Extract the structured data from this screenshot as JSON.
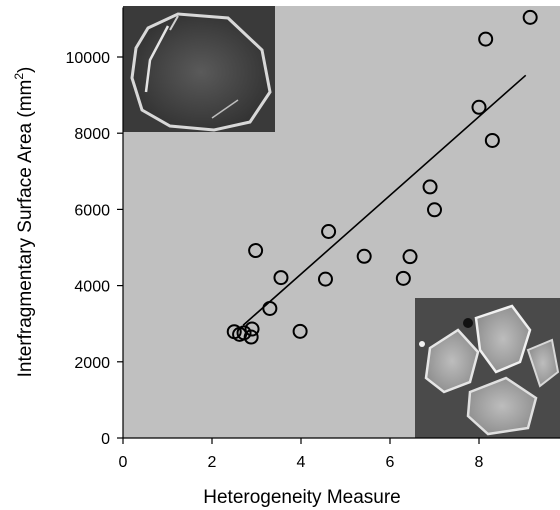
{
  "chart_data": {
    "type": "scatter",
    "xlabel": "Heterogeneity Measure",
    "ylabel": "Interfragmentary Surface Area (mm²)",
    "ylabel_parts": {
      "main": "Interfragmentary Surface Area (mm",
      "sup": "2",
      "end": ")"
    },
    "xlim": [
      0,
      9.8
    ],
    "ylim": [
      0,
      11300
    ],
    "xticks": [
      0,
      2,
      4,
      6,
      8
    ],
    "yticks": [
      0,
      2000,
      4000,
      6000,
      8000,
      10000
    ],
    "ytick_labels": [
      "0",
      "2000",
      "4000",
      "6000",
      "8000",
      "10000"
    ],
    "grid": false,
    "background": "#c0c0c0",
    "points": [
      {
        "x": 2.5,
        "y": 2790
      },
      {
        "x": 2.62,
        "y": 2720
      },
      {
        "x": 2.72,
        "y": 2760
      },
      {
        "x": 2.9,
        "y": 2860
      },
      {
        "x": 2.88,
        "y": 2650
      },
      {
        "x": 2.98,
        "y": 4920
      },
      {
        "x": 3.3,
        "y": 3400
      },
      {
        "x": 3.55,
        "y": 4210
      },
      {
        "x": 3.98,
        "y": 2800
      },
      {
        "x": 4.55,
        "y": 4170
      },
      {
        "x": 4.62,
        "y": 5420
      },
      {
        "x": 5.42,
        "y": 4770
      },
      {
        "x": 6.3,
        "y": 4190
      },
      {
        "x": 6.45,
        "y": 4760
      },
      {
        "x": 6.9,
        "y": 6590
      },
      {
        "x": 7.0,
        "y": 5990
      },
      {
        "x": 8.0,
        "y": 8680
      },
      {
        "x": 8.15,
        "y": 10470
      },
      {
        "x": 8.3,
        "y": 7810
      },
      {
        "x": 9.15,
        "y": 11040
      }
    ],
    "trendline": {
      "x": [
        2.7,
        9.05
      ],
      "y": [
        2960,
        9520
      ]
    },
    "insets": [
      {
        "name": "ct-scan-intact-bone-image",
        "corner": "top-left"
      },
      {
        "name": "ct-scan-fractured-bone-image",
        "corner": "bottom-right"
      }
    ]
  }
}
